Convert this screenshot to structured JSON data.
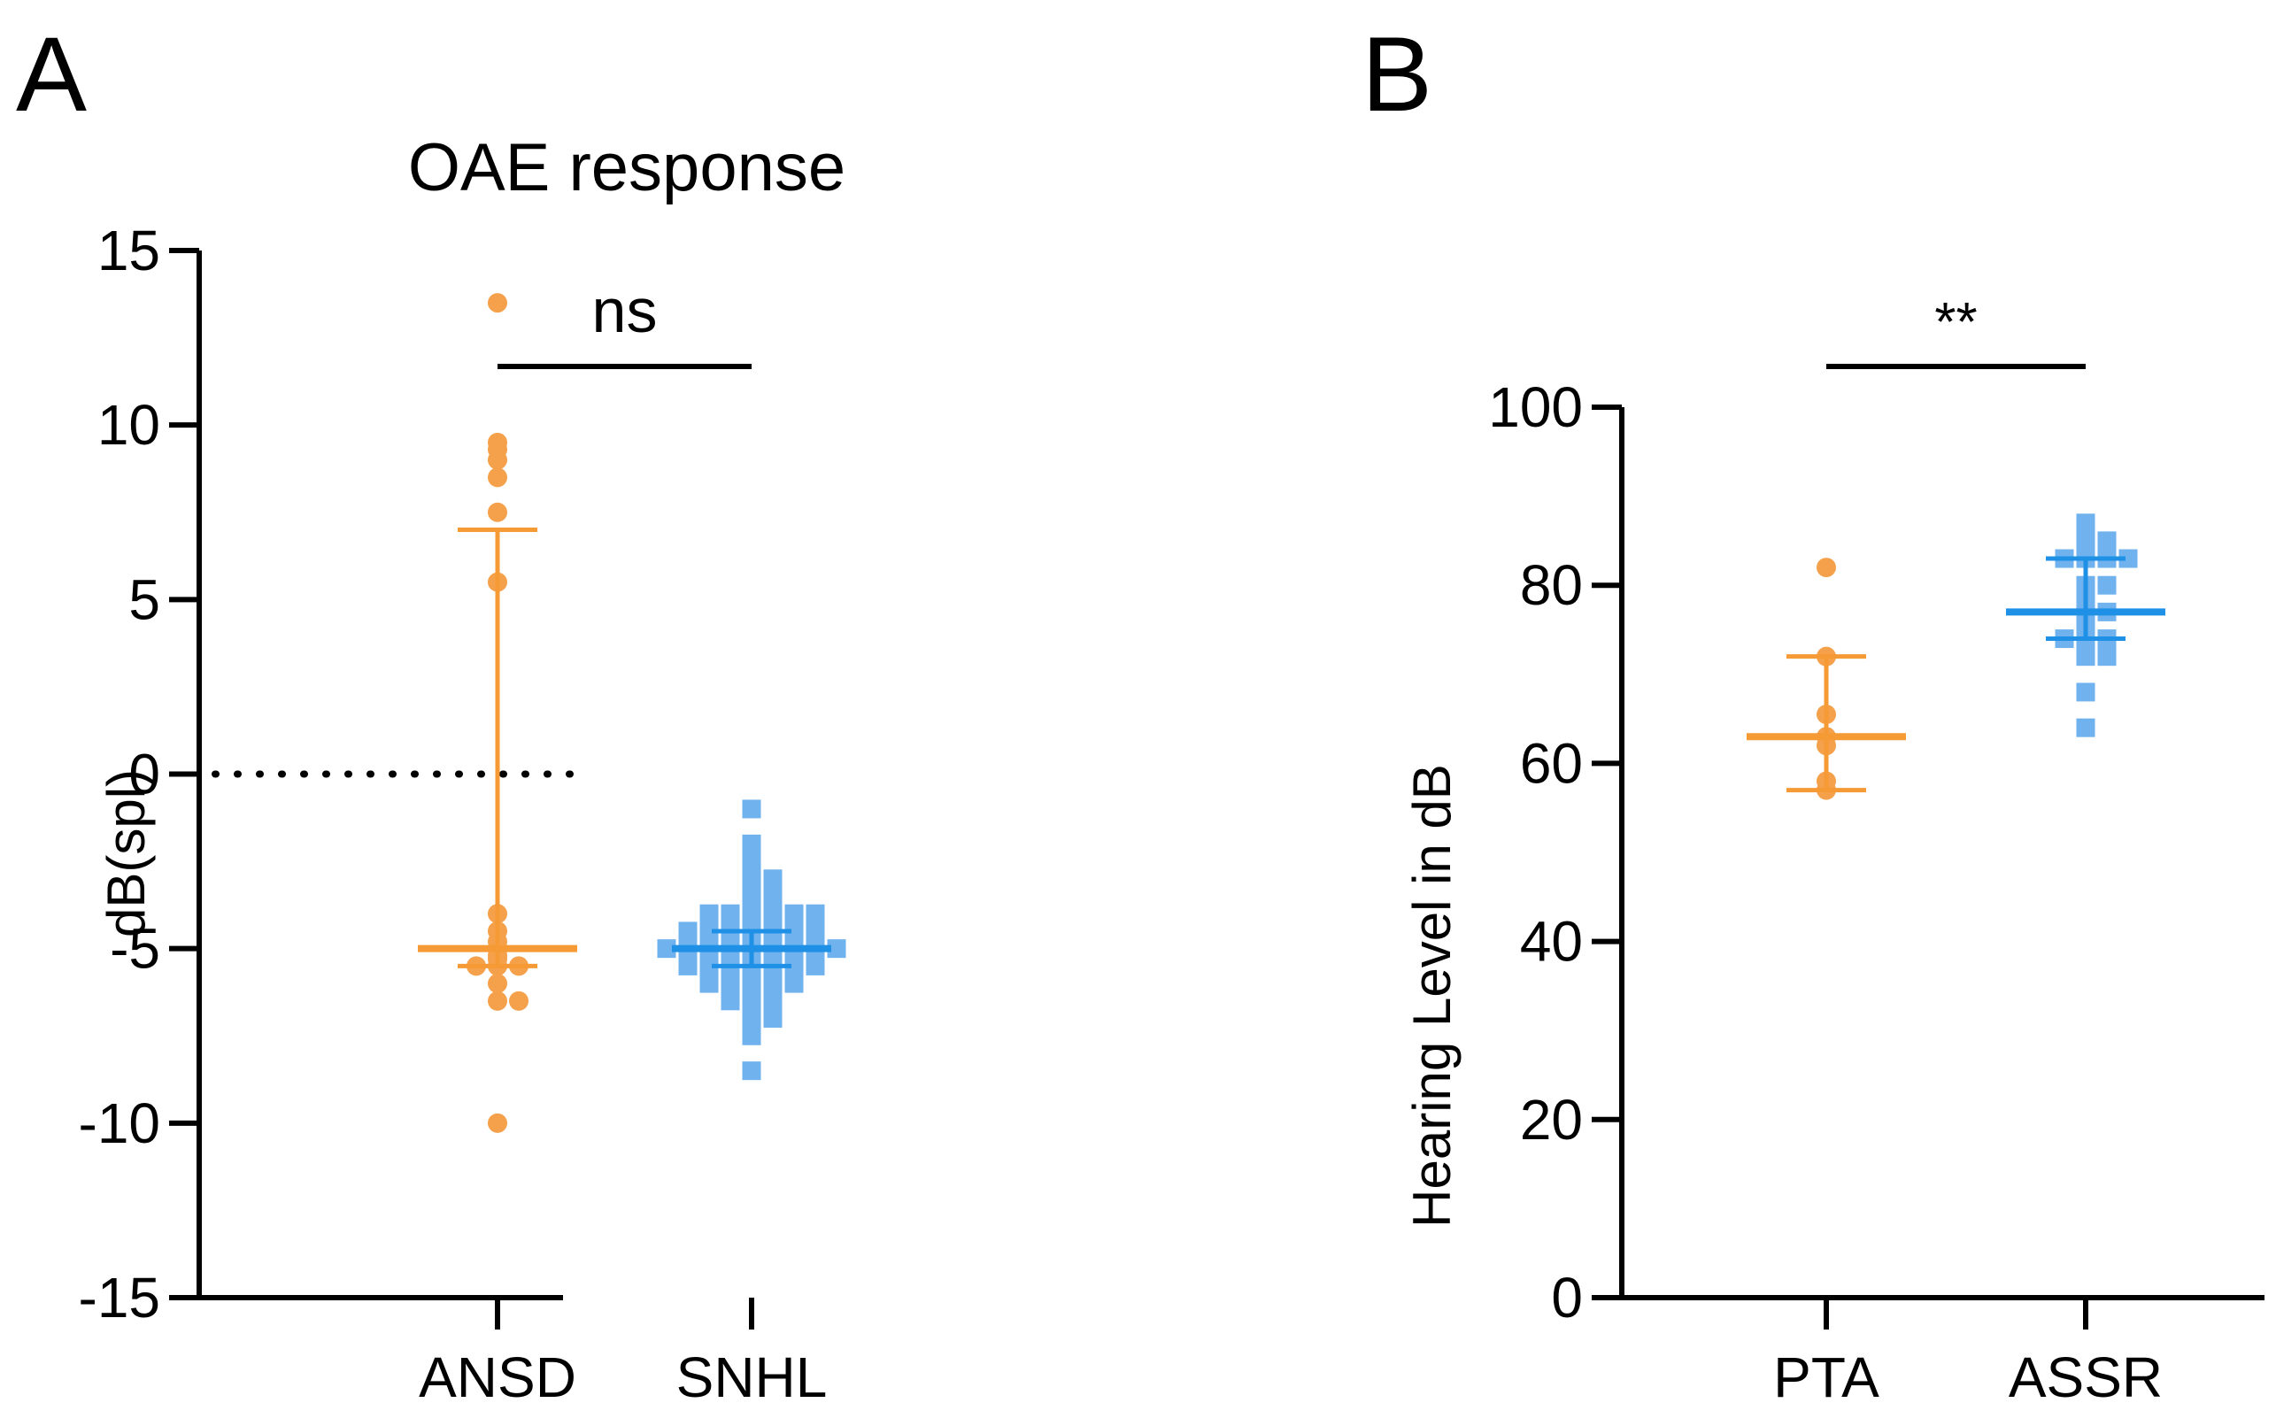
{
  "colors": {
    "ansd": "#F5A04A",
    "snhl": "#6FB2EE",
    "ansd_line": "#F59A34",
    "snhl_line": "#1E90E6",
    "axis": "#000000"
  },
  "chart_data": [
    {
      "panel": "A",
      "type": "scatter",
      "title": "OAE response",
      "xlabel": "",
      "ylabel": "dB(spl)",
      "categories": [
        "ANSD",
        "SNHL"
      ],
      "ylim": [
        -15,
        15
      ],
      "yticks": [
        "-15",
        "-10",
        "-5",
        "0",
        "5",
        "10",
        "15"
      ],
      "reference_line": 0,
      "significance": {
        "label": "ns",
        "from": "ANSD",
        "to": "SNHL"
      },
      "series": [
        {
          "category": "ANSD",
          "marker": "circle",
          "color_key": "ansd",
          "median": -5.0,
          "iqr": [
            -5.5,
            7.0
          ],
          "values": [
            13.5,
            9.5,
            9.0,
            9.3,
            8.5,
            7.5,
            5.5,
            -4.0,
            -4.5,
            -4.8,
            -5.0,
            -5.2,
            -5.3,
            -5.5,
            -5.5,
            -5.5,
            -6.0,
            -6.5,
            -6.5,
            -10.0
          ]
        },
        {
          "category": "SNHL",
          "marker": "square",
          "color_key": "snhl",
          "median": -5.0,
          "iqr": [
            -5.5,
            -4.5
          ],
          "values": [
            -1.0,
            -2.0,
            -2.5,
            -3.0,
            -3.0,
            -3.5,
            -3.5,
            -4.0,
            -4.0,
            -4.0,
            -4.0,
            -4.0,
            -4.0,
            -4.5,
            -4.5,
            -4.5,
            -4.5,
            -4.5,
            -4.5,
            -4.5,
            -5.0,
            -5.0,
            -5.0,
            -5.0,
            -5.0,
            -5.0,
            -5.0,
            -5.0,
            -5.0,
            -5.5,
            -5.5,
            -5.5,
            -5.5,
            -5.5,
            -5.5,
            -5.5,
            -6.0,
            -6.0,
            -6.0,
            -6.0,
            -6.0,
            -6.5,
            -6.5,
            -6.5,
            -7.0,
            -7.0,
            -7.5,
            -8.5
          ]
        }
      ]
    },
    {
      "panel": "B",
      "type": "scatter",
      "title": "",
      "xlabel": "",
      "ylabel": "Hearing Level in dB",
      "categories": [
        "PTA",
        "ASSR"
      ],
      "ylim": [
        0,
        100
      ],
      "yticks": [
        "0",
        "20",
        "40",
        "60",
        "80",
        "100"
      ],
      "significance": {
        "label": "**",
        "from": "PTA",
        "to": "ASSR"
      },
      "series": [
        {
          "category": "PTA",
          "marker": "circle",
          "color_key": "ansd",
          "median": 63,
          "iqr": [
            57,
            72
          ],
          "values": [
            82,
            72,
            65.5,
            63,
            62,
            58,
            57
          ]
        },
        {
          "category": "ASSR",
          "marker": "square",
          "color_key": "snhl",
          "median": 77,
          "iqr": [
            74,
            83
          ],
          "values": [
            87,
            85,
            85,
            83,
            83,
            83,
            83,
            80,
            80,
            79,
            78,
            77,
            77,
            76,
            75,
            74,
            74,
            74,
            73,
            72,
            72,
            68,
            64
          ]
        }
      ]
    }
  ]
}
